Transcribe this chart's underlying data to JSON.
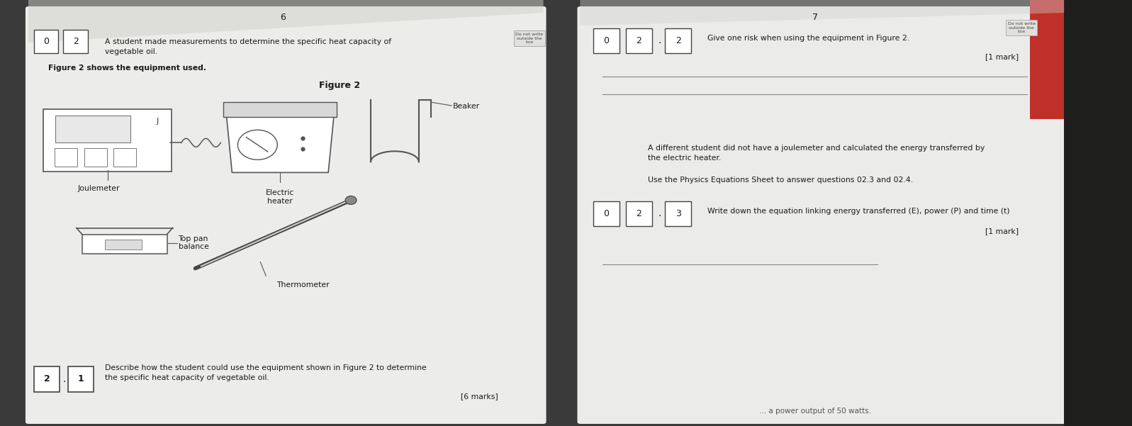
{
  "page_num_left": "6",
  "page_num_right": "7",
  "left_intro": "A student made measurements to determine the specific heat capacity of\nvegetable oil.",
  "left_figure_intro": "Figure 2 shows the equipment used.",
  "left_figure_title": "Figure 2",
  "do_not_write_text": "Do not write\noutside the\nbox",
  "right_q022_text": "Give one risk when using the equipment in Figure 2.",
  "right_q022_marks": "[1 mark]",
  "right_middle_text1": "A different student did not have a joulemeter and calculated the energy transferred by\nthe electric heater.",
  "right_middle_text2": "Use the Physics Equations Sheet to answer questions 02.3 and 02.4.",
  "right_q023_text": "Write down the equation linking energy transferred (E), power (P) and time (t)",
  "right_q023_marks": "[1 mark]",
  "bottom_text": "Describe how the student could use the equipment shown in Figure 2 to determine\nthe specific heat capacity of vegetable oil.",
  "bottom_marks": "[6 marks]",
  "bottom_partial_text": "... a power output of 50 watts.",
  "bg_dark": "#3a3a3a",
  "bg_red": "#c0392b",
  "page_color": "#ebebeb",
  "page_color2": "#e8e8e5",
  "text_dark": "#1a1a1a",
  "text_mid": "#444444",
  "line_color": "#888888",
  "draw_color": "#555555"
}
